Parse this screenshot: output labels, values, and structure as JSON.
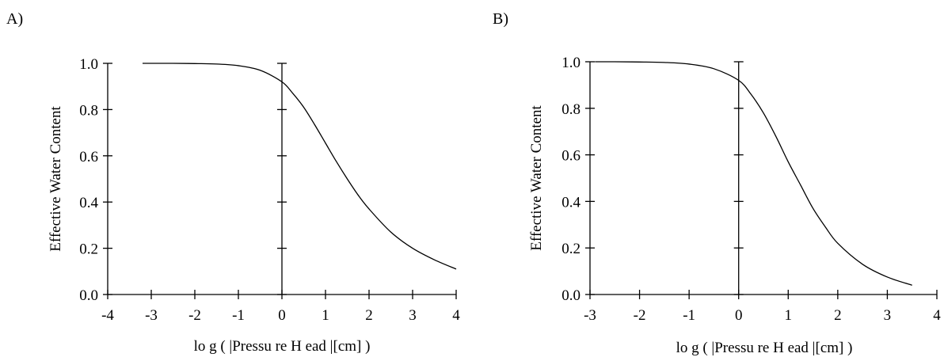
{
  "chart_data": [
    {
      "type": "line",
      "panel_label": "A)",
      "xlabel": "lo g ( |Pressu re H ead |[cm] )",
      "ylabel": "Effective Water Content",
      "xlim": [
        -4,
        4
      ],
      "ylim": [
        0.0,
        1.0
      ],
      "xticks": [
        -4,
        -3,
        -2,
        -1,
        0,
        1,
        2,
        3,
        4
      ],
      "xtick_labels": [
        "-4",
        "-3",
        "-2",
        "-1",
        "0",
        "1",
        "2",
        "3",
        "4"
      ],
      "yticks": [
        0.0,
        0.2,
        0.4,
        0.6,
        0.8,
        1.0
      ],
      "ytick_labels": [
        "0.0",
        "0.2",
        "0.4",
        "0.6",
        "0.8",
        "1.0"
      ],
      "grid": false,
      "series": [
        {
          "color": "#000000",
          "x": [
            -3.2,
            -2.5,
            -2.0,
            -1.5,
            -1.0,
            -0.5,
            0.0,
            0.25,
            0.5,
            0.75,
            1.0,
            1.25,
            1.5,
            1.75,
            2.0,
            2.5,
            3.0,
            3.5,
            4.0
          ],
          "y": [
            1.0,
            1.0,
            0.999,
            0.997,
            0.99,
            0.97,
            0.92,
            0.87,
            0.81,
            0.735,
            0.655,
            0.575,
            0.5,
            0.43,
            0.37,
            0.27,
            0.2,
            0.15,
            0.11
          ]
        }
      ]
    },
    {
      "type": "line",
      "panel_label": "B)",
      "xlabel": "lo g ( |Pressu re H ead |[cm] )",
      "ylabel": "Effective Water Content",
      "xlim": [
        -3,
        4
      ],
      "ylim": [
        0.0,
        1.0
      ],
      "xticks": [
        -3,
        -2,
        -1,
        0,
        1,
        2,
        3,
        4
      ],
      "xtick_labels": [
        "-3",
        "-2",
        "-1",
        "0",
        "1",
        "2",
        "3",
        "4"
      ],
      "yticks": [
        0.0,
        0.2,
        0.4,
        0.6,
        0.8,
        1.0
      ],
      "ytick_labels": [
        "0.0",
        "0.2",
        "0.4",
        "0.6",
        "0.8",
        "1.0"
      ],
      "grid": false,
      "series": [
        {
          "color": "#000000",
          "x": [
            -2.9,
            -2.5,
            -2.0,
            -1.5,
            -1.0,
            -0.5,
            0.0,
            0.25,
            0.5,
            0.75,
            1.0,
            1.25,
            1.5,
            1.75,
            2.0,
            2.5,
            3.0,
            3.5
          ],
          "y": [
            1.0,
            1.0,
            0.999,
            0.997,
            0.99,
            0.97,
            0.92,
            0.86,
            0.78,
            0.68,
            0.57,
            0.47,
            0.37,
            0.29,
            0.22,
            0.13,
            0.075,
            0.04
          ]
        }
      ]
    }
  ]
}
